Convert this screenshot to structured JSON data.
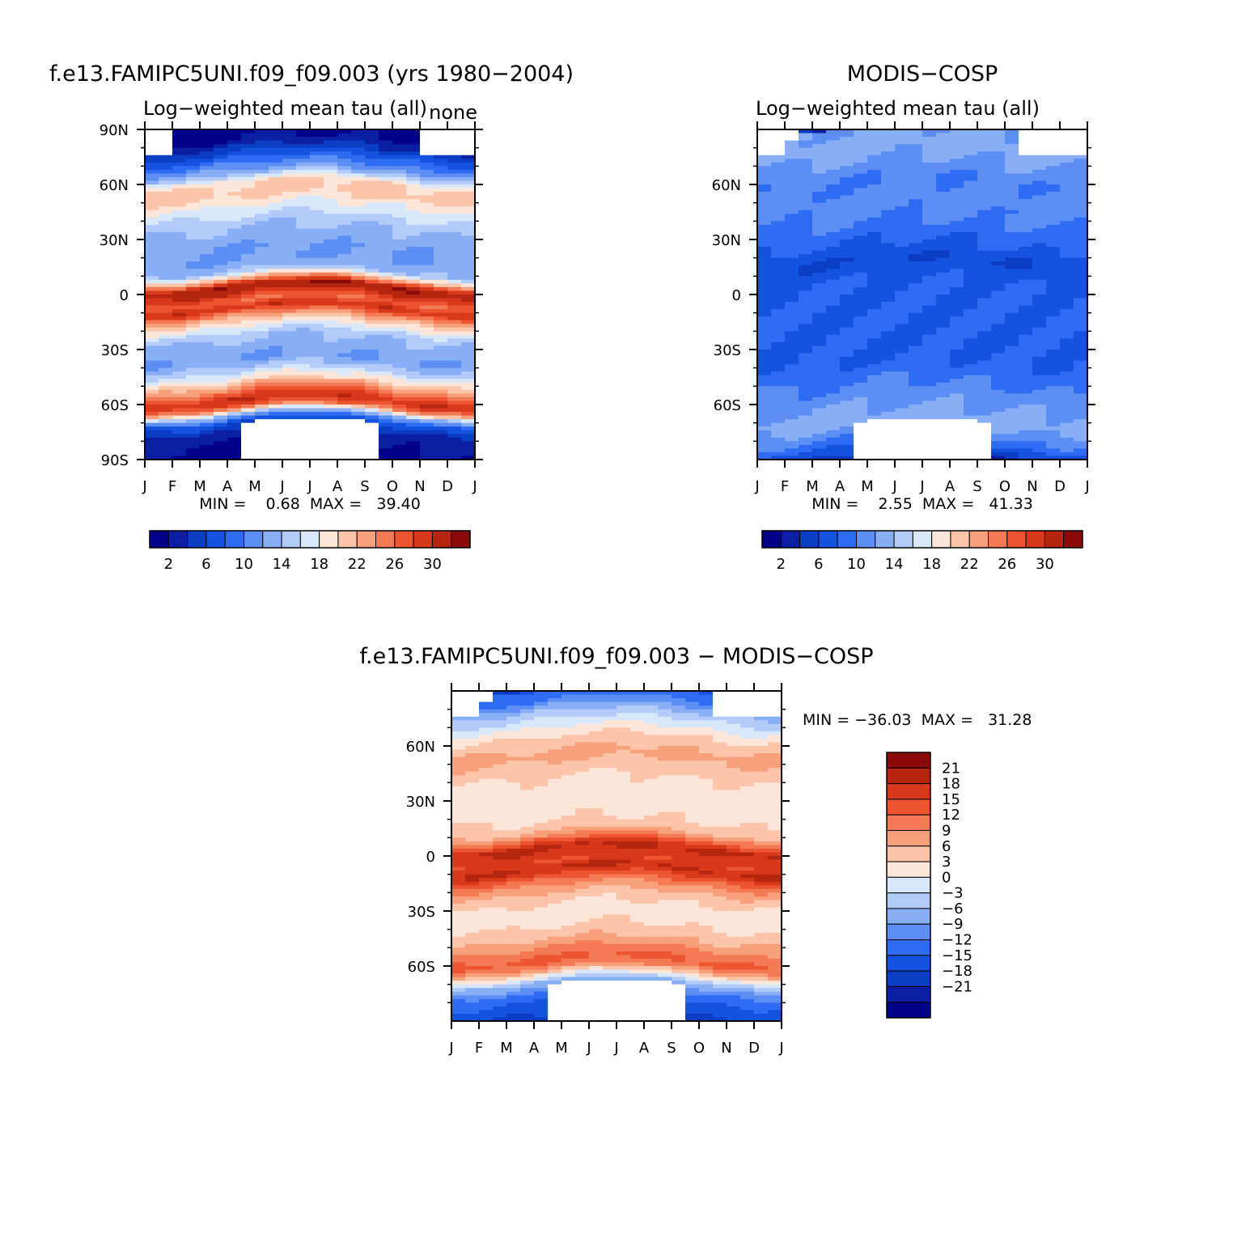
{
  "palettes": {
    "absolute": [
      "#00008b",
      "#0a1fa3",
      "#0b3ec4",
      "#1452e0",
      "#2f6cf4",
      "#5d8ef4",
      "#88aef6",
      "#b3cbf8",
      "#d9e7fb",
      "#fde6d8",
      "#fcc4a9",
      "#f8a07c",
      "#f47a55",
      "#ed5530",
      "#d8391a",
      "#b52510",
      "#8b0a0a"
    ],
    "difference": [
      "#00008b",
      "#0a1fa3",
      "#0b3ec4",
      "#1452e0",
      "#2f6cf4",
      "#5d8ef4",
      "#88aef6",
      "#b3cbf8",
      "#d9e7fb",
      "#fde6d8",
      "#fcc4a9",
      "#f8a07c",
      "#f47a55",
      "#ed5530",
      "#d8391a",
      "#b52510",
      "#8b0a0a"
    ]
  },
  "chart_data": [
    {
      "type": "heatmap",
      "title": "f.e13.FAMIPC5UNI.f09_f09.003 (yrs 1980−2004)",
      "subtitle_left": "Log−weighted mean tau (all)",
      "subtitle_right": "none",
      "x_tick_labels": [
        "J",
        "F",
        "M",
        "A",
        "M",
        "J",
        "J",
        "A",
        "S",
        "O",
        "N",
        "D",
        "J"
      ],
      "y_tick_labels": [
        "90N",
        "60N",
        "30N",
        "0",
        "30S",
        "60S",
        "90S"
      ],
      "y_tick_values": [
        90,
        60,
        30,
        0,
        -30,
        -60,
        -90
      ],
      "ylim": [
        -90,
        90
      ],
      "stats_text": "MIN =    0.68  MAX =   39.40",
      "min": 0.68,
      "max": 39.4,
      "colorbar": {
        "orientation": "horizontal",
        "labels": [
          "2",
          "6",
          "10",
          "14",
          "18",
          "22",
          "26",
          "30"
        ],
        "levels": [
          0,
          2,
          4,
          6,
          8,
          10,
          12,
          14,
          16,
          18,
          20,
          22,
          24,
          26,
          28,
          30,
          32
        ]
      },
      "latitude_profile": [
        [
          90,
          1
        ],
        [
          84,
          2
        ],
        [
          78,
          5
        ],
        [
          72,
          9
        ],
        [
          66,
          13
        ],
        [
          60,
          20
        ],
        [
          54,
          21
        ],
        [
          48,
          18
        ],
        [
          42,
          16
        ],
        [
          36,
          14
        ],
        [
          30,
          13
        ],
        [
          24,
          12
        ],
        [
          18,
          12
        ],
        [
          12,
          14
        ],
        [
          8,
          22
        ],
        [
          4,
          32
        ],
        [
          0,
          30
        ],
        [
          -4,
          26
        ],
        [
          -8,
          30
        ],
        [
          -12,
          24
        ],
        [
          -18,
          18
        ],
        [
          -24,
          14
        ],
        [
          -30,
          13
        ],
        [
          -36,
          12
        ],
        [
          -42,
          15
        ],
        [
          -48,
          20
        ],
        [
          -54,
          26
        ],
        [
          -58,
          30
        ],
        [
          -62,
          26
        ],
        [
          -66,
          14
        ],
        [
          -70,
          7
        ],
        [
          -76,
          3
        ],
        [
          -84,
          2
        ],
        [
          -90,
          1
        ]
      ],
      "missing_bands": "polar night (no data)"
    },
    {
      "type": "heatmap",
      "title": "MODIS−COSP",
      "subtitle_left": "Log−weighted mean tau (all)",
      "x_tick_labels": [
        "J",
        "F",
        "M",
        "A",
        "M",
        "J",
        "J",
        "A",
        "S",
        "O",
        "N",
        "D",
        "J"
      ],
      "y_tick_labels": [
        "60N",
        "30N",
        "0",
        "30S",
        "60S"
      ],
      "y_tick_values": [
        60,
        30,
        0,
        -30,
        -60
      ],
      "ylim": [
        -90,
        90
      ],
      "stats_text": "MIN =    2.55  MAX =   41.33",
      "min": 2.55,
      "max": 41.33,
      "colorbar": {
        "orientation": "horizontal",
        "labels": [
          "2",
          "6",
          "10",
          "14",
          "18",
          "22",
          "26",
          "30"
        ],
        "levels": [
          0,
          2,
          4,
          6,
          8,
          10,
          12,
          14,
          16,
          18,
          20,
          22,
          24,
          26,
          28,
          30,
          32
        ]
      },
      "latitude_profile": [
        [
          90,
          12
        ],
        [
          80,
          13
        ],
        [
          72,
          12
        ],
        [
          66,
          11
        ],
        [
          60,
          10
        ],
        [
          50,
          11
        ],
        [
          40,
          10
        ],
        [
          32,
          9
        ],
        [
          26,
          8
        ],
        [
          18,
          6
        ],
        [
          12,
          7
        ],
        [
          6,
          8
        ],
        [
          0,
          8
        ],
        [
          -6,
          8
        ],
        [
          -12,
          8
        ],
        [
          -20,
          8
        ],
        [
          -30,
          8
        ],
        [
          -38,
          8
        ],
        [
          -44,
          9
        ],
        [
          -50,
          10
        ],
        [
          -56,
          11
        ],
        [
          -62,
          12
        ],
        [
          -70,
          13
        ],
        [
          -80,
          10
        ],
        [
          -88,
          6
        ],
        [
          -90,
          4
        ]
      ],
      "missing_bands": "polar night (no data)"
    },
    {
      "type": "heatmap",
      "title": "f.e13.FAMIPC5UNI.f09_f09.003 − MODIS−COSP",
      "x_tick_labels": [
        "J",
        "F",
        "M",
        "A",
        "M",
        "J",
        "J",
        "A",
        "S",
        "O",
        "N",
        "D",
        "J"
      ],
      "y_tick_labels": [
        "60N",
        "30N",
        "0",
        "30S",
        "60S"
      ],
      "y_tick_values": [
        60,
        30,
        0,
        -30,
        -60
      ],
      "ylim": [
        -90,
        90
      ],
      "stats_text": "MIN = −36.03  MAX =   31.28",
      "min": -36.03,
      "max": 31.28,
      "colorbar": {
        "orientation": "vertical",
        "labels": [
          "21",
          "18",
          "15",
          "12",
          "9",
          "6",
          "3",
          "0",
          "−3",
          "−6",
          "−9",
          "−12",
          "−15",
          "−18",
          "−21"
        ],
        "levels": [
          24,
          21,
          18,
          15,
          12,
          9,
          6,
          3,
          0,
          -3,
          -6,
          -9,
          -12,
          -15,
          -18,
          -21,
          -24
        ]
      },
      "latitude_profile": [
        [
          90,
          -12
        ],
        [
          84,
          -9
        ],
        [
          78,
          -3
        ],
        [
          72,
          1
        ],
        [
          66,
          5
        ],
        [
          60,
          8
        ],
        [
          54,
          10
        ],
        [
          48,
          8
        ],
        [
          42,
          6
        ],
        [
          36,
          5
        ],
        [
          30,
          4
        ],
        [
          24,
          5
        ],
        [
          18,
          6
        ],
        [
          12,
          9
        ],
        [
          8,
          15
        ],
        [
          4,
          22
        ],
        [
          0,
          20
        ],
        [
          -4,
          18
        ],
        [
          -8,
          22
        ],
        [
          -12,
          17
        ],
        [
          -18,
          11
        ],
        [
          -24,
          7
        ],
        [
          -30,
          5
        ],
        [
          -36,
          5
        ],
        [
          -42,
          7
        ],
        [
          -48,
          10
        ],
        [
          -54,
          14
        ],
        [
          -58,
          16
        ],
        [
          -62,
          12
        ],
        [
          -66,
          4
        ],
        [
          -70,
          -4
        ],
        [
          -76,
          -10
        ],
        [
          -84,
          -14
        ],
        [
          -90,
          -16
        ]
      ],
      "missing_bands": "polar night (no data)"
    }
  ]
}
